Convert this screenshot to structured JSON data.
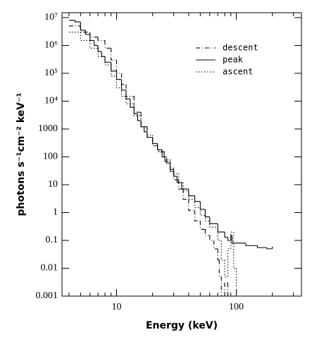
{
  "chart_data": {
    "type": "step",
    "x_label": "Energy (keV)",
    "y_label": "photons s⁻¹cm⁻² keV⁻¹",
    "xlog": true,
    "ylog": true,
    "xlim": [
      3.5,
      350
    ],
    "ylim": [
      0.001,
      15000000
    ],
    "xticks": [
      10,
      100
    ],
    "xticks_minor": [
      4,
      5,
      6,
      7,
      8,
      9,
      20,
      30,
      40,
      50,
      60,
      70,
      80,
      90,
      200,
      300
    ],
    "yticks": [
      {
        "value": 10000000,
        "label": "10⁷"
      },
      {
        "value": 1000000,
        "label": "10⁶"
      },
      {
        "value": 100000,
        "label": "10⁵"
      },
      {
        "value": 10000,
        "label": "10⁴"
      },
      1000,
      100,
      10,
      1,
      0.1,
      0.01,
      0.001
    ],
    "legend": "upper right",
    "series": [
      {
        "name": "descent",
        "color": "#000",
        "dash": "6 3 1 3",
        "x": [
          4,
          5,
          6,
          7,
          8,
          9,
          10,
          11,
          12,
          14,
          16,
          18,
          20,
          22,
          25,
          28,
          30,
          33,
          36,
          40,
          45,
          50,
          55,
          60,
          65,
          70,
          72,
          75,
          80,
          85
        ],
        "values": [
          5000000,
          3000000,
          2000000,
          1500000,
          800000,
          300000,
          100000,
          40000,
          15000,
          4000,
          1200,
          500,
          250,
          150,
          70,
          30,
          15,
          7,
          3,
          1.2,
          0.5,
          0.25,
          0.15,
          0.1,
          0.05,
          0.02,
          0.005,
          0.001,
          0.003,
          0.001
        ]
      },
      {
        "name": "peak",
        "color": "#000",
        "dash": "none",
        "x": [
          4,
          4.5,
          5,
          5.5,
          6,
          6.5,
          7,
          7.5,
          8,
          9,
          10,
          11,
          12,
          13,
          14,
          15,
          16,
          17,
          18,
          20,
          22,
          24,
          26,
          28,
          30,
          32,
          35,
          40,
          45,
          50,
          55,
          60,
          70,
          80,
          85,
          90,
          92,
          100,
          120,
          150,
          180,
          200
        ],
        "values": [
          8000000,
          7000000,
          3500000,
          2500000,
          1500000,
          1000000,
          600000,
          400000,
          250000,
          120000,
          60000,
          25000,
          12000,
          6000,
          3500,
          2000,
          1200,
          800,
          500,
          300,
          180,
          100,
          60,
          35,
          20,
          12,
          7,
          4,
          2.5,
          1.3,
          0.7,
          0.4,
          0.2,
          0.13,
          0.1,
          0.15,
          0.08,
          0.08,
          0.065,
          0.055,
          0.05,
          0.06
        ]
      },
      {
        "name": "ascent",
        "color": "#000",
        "dash": "1.5 2.5",
        "x": [
          4,
          5,
          6,
          7,
          8,
          9,
          10,
          11,
          12,
          14,
          16,
          18,
          20,
          22,
          25,
          28,
          30,
          33,
          36,
          40,
          45,
          50,
          55,
          60,
          70,
          75,
          80,
          85,
          90,
          95,
          100
        ],
        "values": [
          3000000,
          1500000,
          800000,
          400000,
          200000,
          80000,
          30000,
          15000,
          8000,
          3000,
          1200,
          600,
          300,
          160,
          80,
          40,
          25,
          12,
          6,
          3,
          1.5,
          0.8,
          0.5,
          0.3,
          0.1,
          0.02,
          0.005,
          0.05,
          0.2,
          0.01,
          0.002
        ]
      }
    ]
  }
}
